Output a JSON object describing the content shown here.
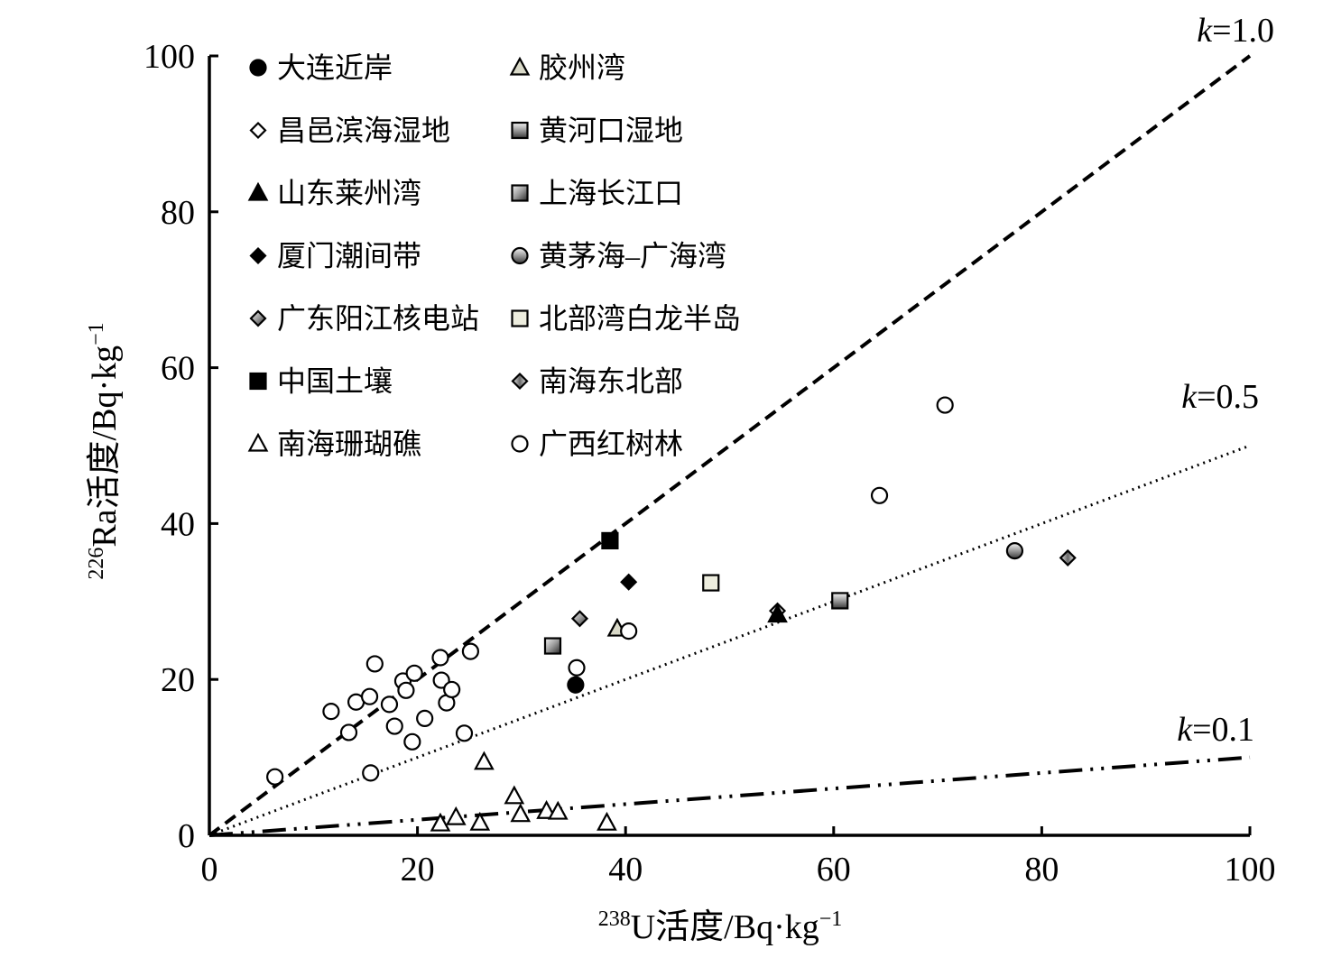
{
  "chart_data": {
    "type": "scatter",
    "xlabel": {
      "sup": "238",
      "text": "U活度/Bq·kg",
      "unit_sup": "−1"
    },
    "ylabel": {
      "sup": "226",
      "text": "Ra活度/Bq·kg",
      "unit_sup": "−1"
    },
    "xlim": [
      0,
      100
    ],
    "ylim": [
      0,
      100
    ],
    "xticks": [
      0,
      20,
      40,
      60,
      80,
      100
    ],
    "yticks": [
      0,
      20,
      40,
      60,
      80,
      100
    ],
    "grid": false,
    "legend_position": "top-left",
    "reference_lines": [
      {
        "k": 1.0,
        "label_k": "k",
        "label_value": "=1.0",
        "style": "dashed"
      },
      {
        "k": 0.5,
        "label_k": "k",
        "label_value": "=0.5",
        "style": "dotted"
      },
      {
        "k": 0.1,
        "label_k": "k",
        "label_value": "=0.1",
        "style": "dash-dot-dot"
      }
    ],
    "series": [
      {
        "name": "大连近岸",
        "marker": "circle",
        "fill": "#000000",
        "points": [
          [
            35.2,
            19.3
          ]
        ]
      },
      {
        "name": "胶州湾",
        "marker": "triangle",
        "fill": "#d9d9c8",
        "points": [
          [
            39.2,
            26.5
          ]
        ]
      },
      {
        "name": "昌邑滨海湿地",
        "marker": "diamond",
        "fill": "#ffffff",
        "points": [
          [
            54.6,
            28.8
          ]
        ]
      },
      {
        "name": "黄河口湿地",
        "marker": "square",
        "fill": "grad-h",
        "points": [
          [
            60.6,
            30.1
          ]
        ]
      },
      {
        "name": "山东莱州湾",
        "marker": "triangle",
        "fill": "#000000",
        "points": [
          [
            54.6,
            28.3
          ]
        ]
      },
      {
        "name": "上海长江口",
        "marker": "square",
        "fill": "grad-d",
        "points": [
          [
            33.0,
            24.3
          ]
        ]
      },
      {
        "name": "厦门潮间带",
        "marker": "diamond",
        "fill": "#000000",
        "points": [
          [
            40.3,
            32.5
          ]
        ]
      },
      {
        "name": "黄茅海–广海湾",
        "marker": "circle",
        "fill": "grad-h",
        "points": [
          [
            77.4,
            36.5
          ]
        ]
      },
      {
        "name": "广东阳江核电站",
        "marker": "diamond",
        "fill": "grad-d",
        "points": [
          [
            35.6,
            27.8
          ]
        ]
      },
      {
        "name": "北部湾白龙半岛",
        "marker": "square",
        "fill": "#ededde",
        "points": [
          [
            48.2,
            32.4
          ]
        ]
      },
      {
        "name": "中国土壤",
        "marker": "square",
        "fill": "#000000",
        "points": [
          [
            38.5,
            37.8
          ]
        ]
      },
      {
        "name": "南海东北部",
        "marker": "diamond",
        "fill": "grad-v",
        "points": [
          [
            82.5,
            35.6
          ]
        ]
      },
      {
        "name": "南海珊瑚礁",
        "marker": "triangle",
        "fill": "#ffffff",
        "points": [
          [
            22.2,
            1.5
          ],
          [
            23.7,
            2.3
          ],
          [
            26.0,
            1.6
          ],
          [
            26.4,
            9.4
          ],
          [
            29.3,
            5.0
          ],
          [
            29.9,
            2.7
          ],
          [
            32.4,
            3.1
          ],
          [
            33.5,
            3.0
          ],
          [
            38.2,
            1.6
          ]
        ]
      },
      {
        "name": "广西红树林",
        "marker": "circle",
        "fill": "#ffffff",
        "points": [
          [
            6.3,
            7.5
          ],
          [
            11.7,
            15.9
          ],
          [
            13.4,
            13.2
          ],
          [
            14.1,
            17.1
          ],
          [
            15.4,
            17.8
          ],
          [
            15.5,
            8.0
          ],
          [
            15.9,
            22.0
          ],
          [
            17.3,
            16.8
          ],
          [
            17.8,
            14.0
          ],
          [
            18.6,
            19.8
          ],
          [
            18.9,
            18.6
          ],
          [
            19.5,
            12.0
          ],
          [
            19.7,
            20.8
          ],
          [
            20.7,
            15.0
          ],
          [
            22.2,
            22.8
          ],
          [
            22.3,
            19.9
          ],
          [
            22.8,
            17.0
          ],
          [
            23.3,
            18.7
          ],
          [
            24.5,
            13.1
          ],
          [
            25.1,
            23.6
          ],
          [
            35.3,
            21.5
          ],
          [
            40.3,
            26.2
          ],
          [
            64.4,
            43.6
          ],
          [
            70.7,
            55.2
          ]
        ]
      }
    ]
  }
}
